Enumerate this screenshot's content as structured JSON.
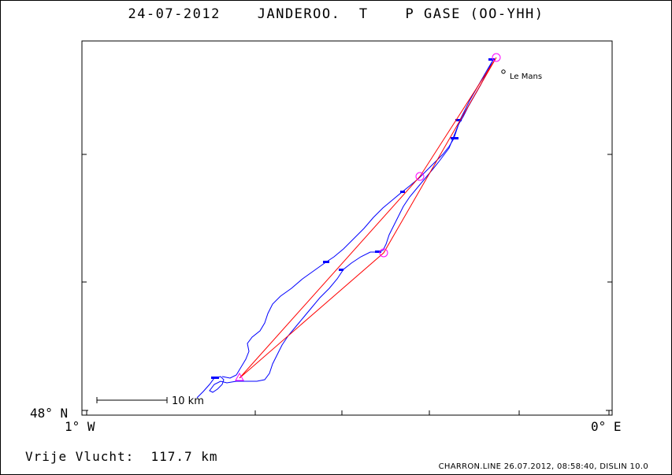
{
  "title": "24-07-2012    JANDEROO.  T    P GASE (OO-YHH)",
  "axes": {
    "lat_label": "48° N",
    "lon_left_label": "1° W",
    "lon_right_label": "0° E"
  },
  "city": {
    "name": "Le Mans"
  },
  "scale_bar": {
    "label": "10 km"
  },
  "distance_text": "Vrije Vlucht:  117.7 km",
  "footer": "CHARRON.LINE 26.07.2012, 08:58:40, DISLIN 10.0",
  "colors": {
    "track": "#0000ff",
    "task": "#ff0000",
    "turnpoint": "#ff00ff",
    "axes": "#000000"
  }
}
